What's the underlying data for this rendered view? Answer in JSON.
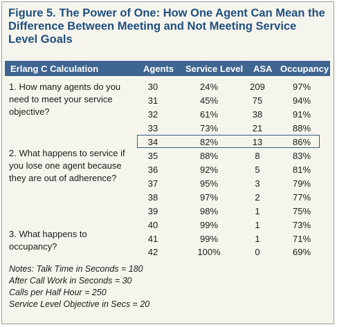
{
  "title": "Figure 5. The Power of One: How One Agent Can Mean the Difference Between Meeting and Not Meeting Service Level Goals",
  "header": {
    "calc": "Erlang C Calculation",
    "agents": "Agents",
    "service_level": "Service Level",
    "asa": "ASA",
    "occupancy": "Occupancy"
  },
  "questions": [
    "1. How many agents do you need to meet your service objective?",
    "2. What happens to service if you lose one agent because they are out of adherence?",
    "3. What happens to occupancy?"
  ],
  "rows": [
    {
      "agents": "30",
      "service_level": "24%",
      "asa": "209",
      "occupancy": "97%"
    },
    {
      "agents": "31",
      "service_level": "45%",
      "asa": "75",
      "occupancy": "94%"
    },
    {
      "agents": "32",
      "service_level": "61%",
      "asa": "38",
      "occupancy": "91%"
    },
    {
      "agents": "33",
      "service_level": "73%",
      "asa": "21",
      "occupancy": "88%"
    },
    {
      "agents": "34",
      "service_level": "82%",
      "asa": "13",
      "occupancy": "86%"
    },
    {
      "agents": "35",
      "service_level": "88%",
      "asa": "8",
      "occupancy": "83%"
    },
    {
      "agents": "36",
      "service_level": "92%",
      "asa": "5",
      "occupancy": "81%"
    },
    {
      "agents": "37",
      "service_level": "95%",
      "asa": "3",
      "occupancy": "79%"
    },
    {
      "agents": "38",
      "service_level": "97%",
      "asa": "2",
      "occupancy": "77%"
    },
    {
      "agents": "39",
      "service_level": "98%",
      "asa": "1",
      "occupancy": "75%"
    },
    {
      "agents": "40",
      "service_level": "99%",
      "asa": "1",
      "occupancy": "73%"
    },
    {
      "agents": "41",
      "service_level": "99%",
      "asa": "1",
      "occupancy": "71%"
    },
    {
      "agents": "42",
      "service_level": "100%",
      "asa": "0",
      "occupancy": "69%"
    }
  ],
  "notes": [
    "Notes: Talk Time in Seconds = 180",
    "After Call Work in Seconds = 30",
    "Calls per Half Hour = 250",
    "Service Level Objective in Secs = 20"
  ],
  "colors": {
    "title": "#1f4f7f",
    "header_bg": "#3f6591",
    "panel_bg": "#f6f5ed",
    "highlight_border": "#2f5a88"
  }
}
